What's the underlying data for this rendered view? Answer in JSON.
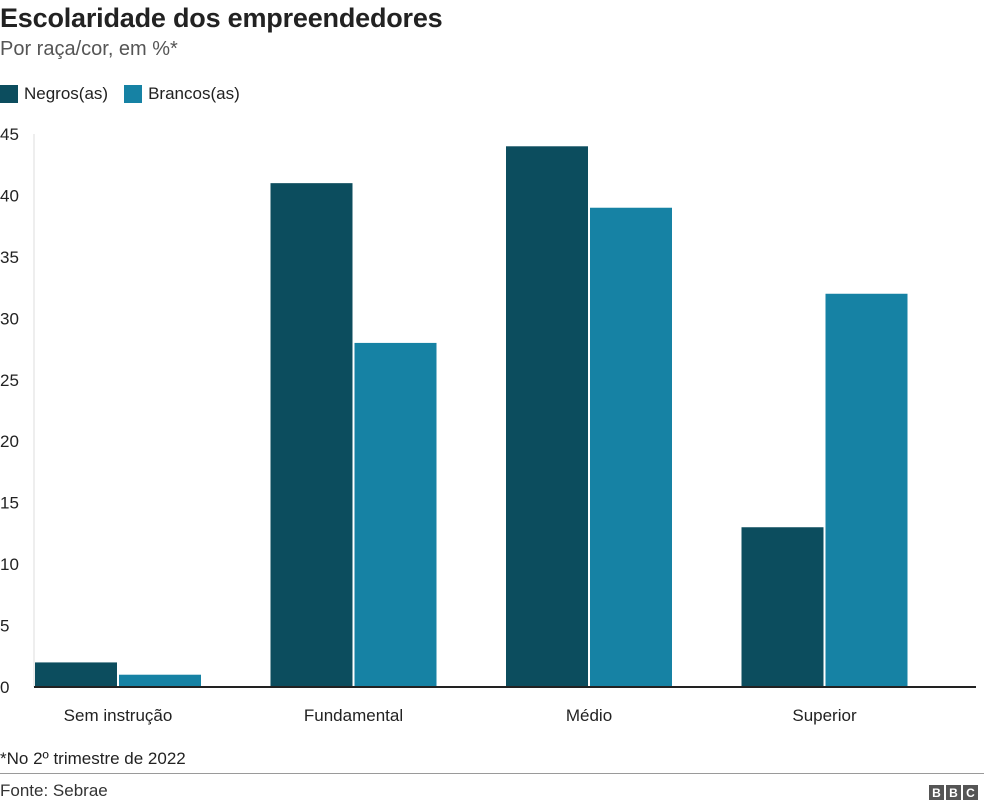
{
  "header": {
    "title": "Escolaridade dos empreendedores",
    "subtitle": "Por raça/cor, em %*"
  },
  "colors": {
    "negros": "#0c4d5e",
    "brancos": "#1682a4",
    "axis": "#222222",
    "gridline": "#dddddd"
  },
  "chart_data": {
    "type": "bar",
    "title": "Escolaridade dos empreendedores",
    "subtitle": "Por raça/cor, em %*",
    "categories": [
      "Sem instrução",
      "Fundamental",
      "Médio",
      "Superior"
    ],
    "series": [
      {
        "name": "Negros(as)",
        "values": [
          2,
          41,
          44,
          13
        ]
      },
      {
        "name": "Brancos(as)",
        "values": [
          1,
          28,
          39,
          32
        ]
      }
    ],
    "ylim": [
      0,
      45
    ],
    "yticks": [
      0,
      5,
      10,
      15,
      20,
      25,
      30,
      35,
      40,
      45
    ],
    "xlabel": "",
    "ylabel": "",
    "legend": "top-left",
    "grid": false
  },
  "footer": {
    "note": "*No 2º trimestre de 2022",
    "source": "Fonte: Sebrae",
    "logo_letters": [
      "B",
      "B",
      "C"
    ]
  }
}
